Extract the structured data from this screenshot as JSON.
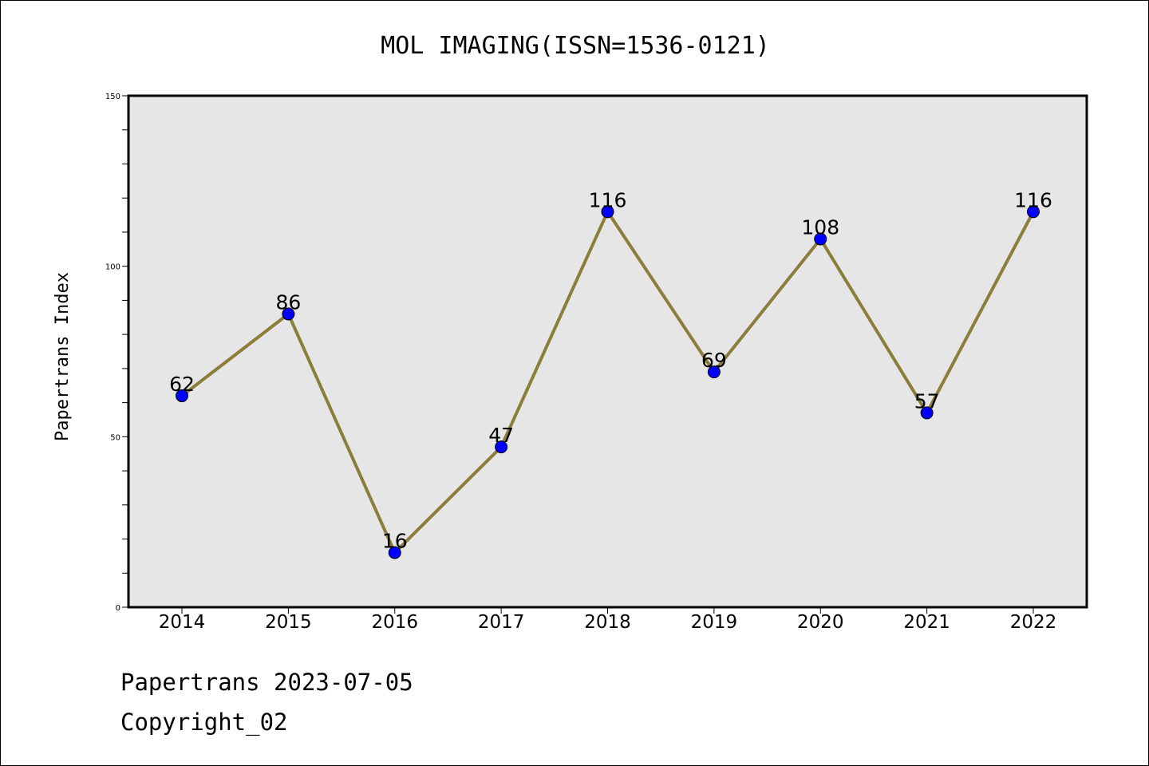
{
  "chart_data": {
    "type": "line",
    "title": "MOL IMAGING(ISSN=1536-0121)",
    "xlabel": "",
    "ylabel": "Papertrans Index",
    "categories": [
      "2014",
      "2015",
      "2016",
      "2017",
      "2018",
      "2019",
      "2020",
      "2021",
      "2022"
    ],
    "values": [
      62,
      86,
      16,
      47,
      116,
      69,
      108,
      57,
      116
    ],
    "ylim": [
      0,
      150
    ],
    "yticks": [
      0,
      50,
      100,
      150
    ],
    "grid": false,
    "line_color": "#8B7D3A",
    "marker_color": "#0000FF",
    "plot_background": "#E6E6E6"
  },
  "footer": {
    "line1": "Papertrans 2023-07-05",
    "line2": "Copyright_02"
  }
}
